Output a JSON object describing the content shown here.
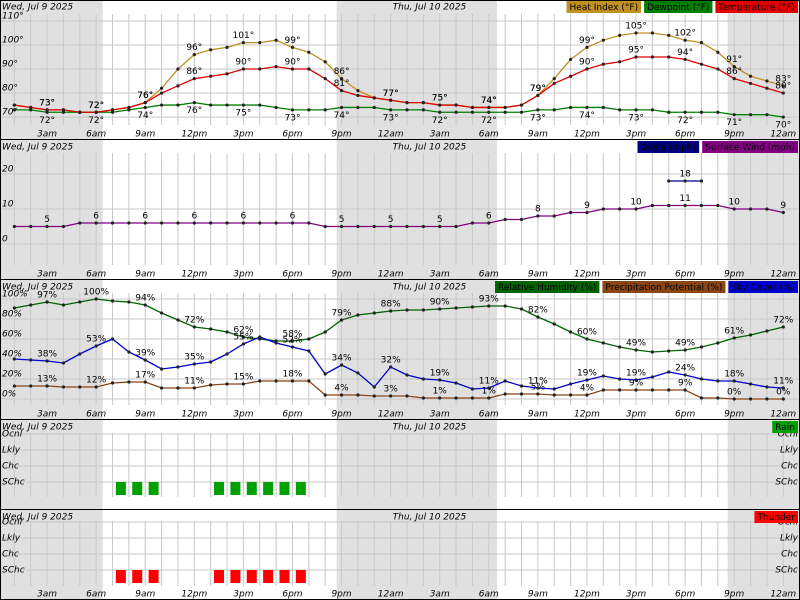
{
  "time_axis": {
    "days": [
      "Wed, Jul 9 2025",
      "Thu, Jul 10 2025"
    ],
    "categories": [
      null,
      null,
      "3am",
      null,
      null,
      "6am",
      null,
      null,
      "9am",
      null,
      null,
      "12pm",
      null,
      null,
      "3pm",
      null,
      null,
      "6pm",
      null,
      null,
      "9pm",
      null,
      null,
      "12am",
      null,
      null,
      "3am",
      null,
      null,
      "6am",
      null,
      null,
      "9am",
      null,
      null,
      "12pm",
      null,
      null,
      "3pm",
      null,
      null,
      "6pm",
      null,
      null,
      "9pm",
      null,
      null,
      "12am"
    ]
  },
  "chart_data": [
    {
      "type": "line",
      "ylim": [
        66.7,
        112.9
      ],
      "grid": true,
      "yticks": [
        {
          "value": 70,
          "label": "70°"
        },
        {
          "value": 80,
          "label": "80°"
        },
        {
          "value": 90,
          "label": "90°"
        },
        {
          "value": 100,
          "label": "100°"
        },
        {
          "value": 110,
          "label": "110°"
        }
      ],
      "series": [
        {
          "name": "Heat Index (°F)",
          "color": "#c09020",
          "values": [
            75,
            74,
            73,
            73,
            72,
            72,
            73,
            74,
            76,
            82,
            90,
            96,
            98,
            99,
            101,
            101,
            102,
            99,
            97,
            93,
            86,
            81,
            78,
            77,
            76,
            76,
            75,
            75,
            74,
            74,
            74,
            75,
            79,
            86,
            94,
            99,
            102,
            104,
            105,
            105,
            104,
            102,
            101,
            97,
            91,
            87,
            85,
            83
          ],
          "value_labels": [
            null,
            null,
            "73°",
            null,
            null,
            "72°",
            null,
            null,
            "76°",
            null,
            null,
            "96°",
            null,
            null,
            "101°",
            null,
            null,
            "99°",
            null,
            null,
            "86°",
            null,
            null,
            "77°",
            null,
            null,
            "75°",
            null,
            null,
            "74°",
            null,
            null,
            "79°",
            null,
            null,
            "99°",
            null,
            null,
            "105°",
            null,
            null,
            "102°",
            null,
            null,
            "91°",
            null,
            null,
            "83°"
          ]
        },
        {
          "name": "Dewpoint (°F)",
          "color": "#008000",
          "values": [
            73,
            73,
            72,
            72,
            72,
            72,
            72,
            73,
            74,
            75,
            75,
            76,
            75,
            75,
            75,
            75,
            74,
            73,
            73,
            73,
            74,
            74,
            74,
            73,
            73,
            73,
            72,
            72,
            72,
            72,
            72,
            72,
            73,
            73,
            74,
            74,
            74,
            73,
            73,
            73,
            72,
            72,
            72,
            72,
            71,
            71,
            71,
            70
          ],
          "value_labels": [
            null,
            null,
            "72°",
            null,
            null,
            "72°",
            null,
            null,
            "74°",
            null,
            null,
            "76°",
            null,
            null,
            "75°",
            null,
            null,
            "73°",
            null,
            null,
            "74°",
            null,
            null,
            "73°",
            null,
            null,
            "72°",
            null,
            null,
            "72°",
            null,
            null,
            "73°",
            null,
            null,
            "74°",
            null,
            null,
            "73°",
            null,
            null,
            "72°",
            null,
            null,
            "71°",
            null,
            null,
            "70°"
          ]
        },
        {
          "name": "Temperature (°F)",
          "color": "#e00000",
          "values": [
            75,
            74,
            73,
            73,
            72,
            72,
            73,
            74,
            76,
            80,
            83,
            86,
            87,
            88,
            90,
            90,
            91,
            90,
            90,
            86,
            81,
            79,
            78,
            77,
            76,
            76,
            75,
            75,
            74,
            74,
            74,
            75,
            79,
            84,
            87,
            90,
            92,
            93,
            95,
            95,
            95,
            94,
            92,
            90,
            86,
            84,
            82,
            80
          ],
          "value_labels": [
            null,
            null,
            "73°",
            null,
            null,
            "72°",
            null,
            null,
            "76°",
            null,
            null,
            "86°",
            null,
            null,
            "90°",
            null,
            null,
            "90°",
            null,
            null,
            "81°",
            null,
            null,
            "77°",
            null,
            null,
            "75°",
            null,
            null,
            "74°",
            null,
            null,
            "79°",
            null,
            null,
            "90°",
            null,
            null,
            "95°",
            null,
            null,
            "94°",
            null,
            null,
            "86°",
            null,
            null,
            "80°"
          ]
        }
      ]
    },
    {
      "type": "line",
      "ylim": [
        -6,
        26
      ],
      "grid": true,
      "yticks": [
        0,
        10,
        20
      ],
      "series": [
        {
          "name": "Gusts (mph)",
          "color": "#000080",
          "values": [
            null,
            null,
            null,
            null,
            null,
            null,
            null,
            null,
            null,
            null,
            null,
            null,
            null,
            null,
            null,
            null,
            null,
            null,
            null,
            null,
            null,
            null,
            null,
            null,
            null,
            null,
            null,
            null,
            null,
            null,
            null,
            null,
            null,
            null,
            null,
            null,
            null,
            null,
            null,
            null,
            18,
            18,
            18,
            null,
            null,
            null,
            null,
            null
          ]
        },
        {
          "name": "Surface Wind (mph)",
          "color": "#800080",
          "values": [
            5,
            5,
            5,
            5,
            6,
            6,
            6,
            6,
            6,
            6,
            6,
            6,
            6,
            6,
            6,
            6,
            6,
            6,
            6,
            5,
            5,
            5,
            5,
            5,
            5,
            5,
            5,
            5,
            6,
            6,
            7,
            7,
            8,
            8,
            9,
            9,
            10,
            10,
            10,
            11,
            11,
            11,
            11,
            11,
            10,
            10,
            10,
            9
          ]
        }
      ]
    },
    {
      "type": "line",
      "ylim": [
        -6,
        106
      ],
      "grid": true,
      "yticks": [
        {
          "value": 0,
          "label": "0%"
        },
        {
          "value": 20,
          "label": "20%"
        },
        {
          "value": 40,
          "label": "40%"
        },
        {
          "value": 60,
          "label": "60%"
        },
        {
          "value": 80,
          "label": "80%"
        },
        {
          "value": 100,
          "label": "100%"
        }
      ],
      "series": [
        {
          "name": "Relative Humidity (%)",
          "color": "#006400",
          "values": [
            91,
            94,
            97,
            94,
            97,
            100,
            98,
            97,
            94,
            86,
            79,
            72,
            70,
            67,
            62,
            60,
            58,
            58,
            60,
            67,
            79,
            84,
            86,
            88,
            89,
            89,
            90,
            91,
            92,
            93,
            93,
            90,
            82,
            75,
            67,
            60,
            56,
            52,
            49,
            47,
            48,
            49,
            52,
            56,
            61,
            64,
            68,
            72
          ],
          "value_labels": [
            null,
            null,
            "97%",
            null,
            null,
            "100%",
            null,
            null,
            "94%",
            null,
            null,
            "72%",
            null,
            null,
            "62%",
            null,
            null,
            "58%",
            null,
            null,
            "79%",
            null,
            null,
            "88%",
            null,
            null,
            "90%",
            null,
            null,
            "93%",
            null,
            null,
            "82%",
            null,
            null,
            "60%",
            null,
            null,
            "49%",
            null,
            null,
            "49%",
            null,
            null,
            "61%",
            null,
            null,
            "72%"
          ]
        },
        {
          "name": "Precipitation Potential (%)",
          "color": "#8b4513",
          "values": [
            13,
            13,
            13,
            12,
            12,
            12,
            16,
            17,
            17,
            11,
            11,
            11,
            14,
            15,
            15,
            18,
            18,
            18,
            18,
            4,
            4,
            4,
            3,
            3,
            3,
            1,
            1,
            1,
            1,
            1,
            5,
            5,
            5,
            4,
            4,
            4,
            9,
            9,
            9,
            9,
            9,
            9,
            1,
            1,
            0,
            0,
            0,
            0
          ],
          "value_labels": [
            null,
            null,
            "13%",
            null,
            null,
            "12%",
            null,
            null,
            "17%",
            null,
            null,
            "11%",
            null,
            null,
            "15%",
            null,
            null,
            "18%",
            null,
            null,
            "4%",
            null,
            null,
            "3%",
            null,
            null,
            "1%",
            null,
            null,
            "1%",
            null,
            null,
            "5%",
            null,
            null,
            "4%",
            null,
            null,
            "9%",
            null,
            null,
            "9%",
            null,
            null,
            "0%",
            null,
            null,
            "0%"
          ]
        },
        {
          "name": "Sky Cover (%)",
          "color": "#0000cd",
          "values": [
            40,
            39,
            38,
            36,
            45,
            53,
            60,
            47,
            39,
            30,
            32,
            35,
            37,
            45,
            55,
            62,
            56,
            52,
            48,
            25,
            34,
            26,
            12,
            32,
            24,
            20,
            19,
            16,
            10,
            11,
            18,
            13,
            11,
            10,
            15,
            19,
            23,
            20,
            19,
            22,
            27,
            24,
            20,
            18,
            18,
            15,
            12,
            11
          ],
          "value_labels": [
            null,
            null,
            "38%",
            null,
            null,
            "53%",
            null,
            null,
            "39%",
            null,
            null,
            "35%",
            null,
            null,
            "55%",
            null,
            null,
            "52%",
            null,
            null,
            "34%",
            null,
            null,
            "32%",
            null,
            null,
            "19%",
            null,
            null,
            "11%",
            null,
            null,
            "11%",
            null,
            null,
            "19%",
            null,
            null,
            "19%",
            null,
            null,
            "24%",
            null,
            null,
            "18%",
            null,
            null,
            "11%"
          ]
        }
      ]
    },
    {
      "type": "bar",
      "y_categories": [
        "Ocnl",
        "Lkly",
        "Chc",
        "SChc"
      ],
      "grid": true,
      "series": [
        {
          "name": "Rain",
          "color": "#00a000",
          "values": [
            null,
            null,
            null,
            null,
            null,
            null,
            null,
            "SChc",
            "SChc",
            "SChc",
            null,
            null,
            null,
            "SChc",
            "SChc",
            "SChc",
            "SChc",
            "SChc",
            "SChc",
            null,
            null,
            null,
            null,
            null,
            null,
            null,
            null,
            null,
            null,
            null,
            null,
            null,
            null,
            null,
            null,
            null,
            null,
            null,
            null,
            null,
            null,
            null,
            null,
            null,
            null,
            null,
            null,
            null
          ]
        }
      ]
    },
    {
      "type": "bar",
      "y_categories": [
        "Ocnl",
        "Lkly",
        "Chc",
        "SChc"
      ],
      "grid": true,
      "series": [
        {
          "name": "Thunder",
          "color": "#ff0000",
          "values": [
            null,
            null,
            null,
            null,
            null,
            null,
            null,
            "SChc",
            "SChc",
            "SChc",
            null,
            null,
            null,
            "SChc",
            "SChc",
            "SChc",
            "SChc",
            "SChc",
            "SChc",
            null,
            null,
            null,
            null,
            null,
            null,
            null,
            null,
            null,
            null,
            null,
            null,
            null,
            null,
            null,
            null,
            null,
            null,
            null,
            null,
            null,
            null,
            null,
            null,
            null,
            null,
            null,
            null,
            null
          ]
        }
      ]
    }
  ]
}
